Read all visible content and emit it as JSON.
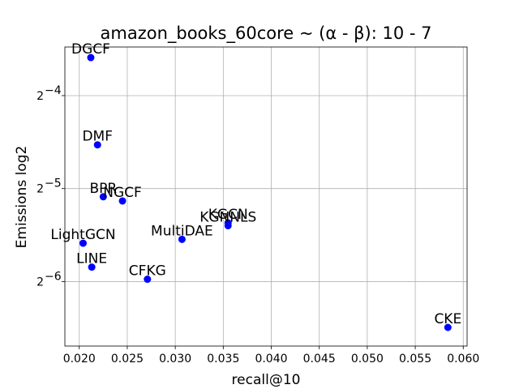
{
  "chart_data": {
    "type": "scatter",
    "title": "amazon_books_60core ~ (α - β): 10 - 7",
    "xlabel": "recall@10",
    "ylabel": "Emissions log2",
    "y_scale": "log2",
    "xlim": [
      0.0185,
      0.0604
    ],
    "ylim": [
      0.00966,
      0.0898
    ],
    "grid": true,
    "marker_color": "#0000ff",
    "x_ticks": [
      "0.020",
      "0.025",
      "0.030",
      "0.035",
      "0.040",
      "0.045",
      "0.050",
      "0.055",
      "0.060"
    ],
    "x_tick_values": [
      0.02,
      0.025,
      0.03,
      0.035,
      0.04,
      0.045,
      0.05,
      0.055,
      0.06
    ],
    "y_ticks": [
      {
        "value": 0.0625,
        "base": "2",
        "exp": "−4"
      },
      {
        "value": 0.03125,
        "base": "2",
        "exp": "−5"
      },
      {
        "value": 0.015625,
        "base": "2",
        "exp": "−6"
      }
    ],
    "points": [
      {
        "label": "DGCF",
        "x": 0.0212,
        "y": 0.083
      },
      {
        "label": "DMF",
        "x": 0.0219,
        "y": 0.0433
      },
      {
        "label": "BPR",
        "x": 0.0225,
        "y": 0.0294
      },
      {
        "label": "NGCF",
        "x": 0.0245,
        "y": 0.0285
      },
      {
        "label": "KGCN",
        "x": 0.0355,
        "y": 0.0242
      },
      {
        "label": "KGNNLS",
        "x": 0.0355,
        "y": 0.0237
      },
      {
        "label": "MultiDAE",
        "x": 0.0307,
        "y": 0.0214
      },
      {
        "label": "LightGCN",
        "x": 0.0204,
        "y": 0.0208
      },
      {
        "label": "LINE",
        "x": 0.0213,
        "y": 0.0174
      },
      {
        "label": "CFKG",
        "x": 0.0271,
        "y": 0.0159
      },
      {
        "label": "CKE",
        "x": 0.0584,
        "y": 0.0111
      }
    ]
  }
}
